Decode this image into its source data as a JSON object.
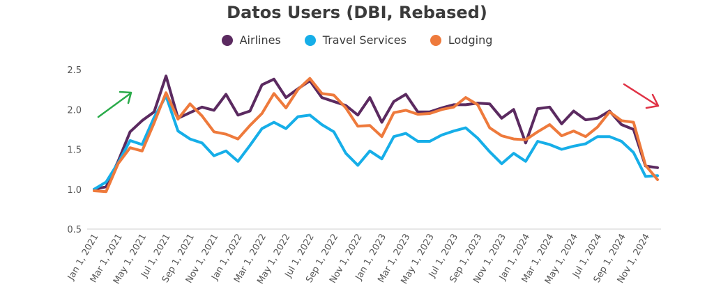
{
  "chart_data": {
    "type": "line",
    "title": "Datos Users (DBI, Rebased)",
    "xlabel": "",
    "ylabel": "",
    "ylim": [
      0.5,
      2.5
    ],
    "yticks": [
      "0.5",
      "1.0",
      "1.5",
      "2.0",
      "2.5"
    ],
    "grid": false,
    "legend_position": "top-center",
    "x": [
      "Jan 1, 2021",
      "Feb 1, 2021",
      "Mar 1, 2021",
      "Apr 1, 2021",
      "May 1, 2021",
      "Jun 1, 2021",
      "Jul 1, 2021",
      "Aug 1, 2021",
      "Sep 1, 2021",
      "Oct 1, 2021",
      "Nov 1, 2021",
      "Dec 1, 2021",
      "Jan 1, 2022",
      "Feb 1, 2022",
      "Mar 1, 2022",
      "Apr 1, 2022",
      "May 1, 2022",
      "Jun 1, 2022",
      "Jul 1, 2022",
      "Aug 1, 2022",
      "Sep 1, 2022",
      "Oct 1, 2022",
      "Nov 1, 2022",
      "Dec 1, 2022",
      "Jan 1, 2023",
      "Feb 1, 2023",
      "Mar 1, 2023",
      "Apr 1, 2023",
      "May 1, 2023",
      "Jun 1, 2023",
      "Jul 1, 2023",
      "Aug 1, 2023",
      "Sep 1, 2023",
      "Oct 1, 2023",
      "Nov 1, 2023",
      "Dec 1, 2023",
      "Jan 1, 2024",
      "Feb 1, 2024",
      "Mar 1, 2024",
      "Apr 1, 2024",
      "May 1, 2024",
      "Jun 1, 2024",
      "Jul 1, 2024",
      "Aug 1, 2024",
      "Sep 1, 2024",
      "Oct 1, 2024",
      "Nov 1, 2024",
      "Dec 1, 2024"
    ],
    "xtick_labels": [
      "Jan 1, 2021",
      "Mar 1, 2021",
      "May 1, 2021",
      "Jul 1, 2021",
      "Sep 1, 2021",
      "Nov 1, 2021",
      "Jan 1, 2022",
      "Mar 1, 2022",
      "May 1, 2022",
      "Jul 1, 2022",
      "Sep 1, 2022",
      "Nov 1, 2022",
      "Jan 1, 2023",
      "Mar 1, 2023",
      "May 1, 2023",
      "Jul 1, 2023",
      "Sep 1, 2023",
      "Nov 1, 2023",
      "Jan 1, 2024",
      "Mar 1, 2024",
      "May 1, 2024",
      "Jul 1, 2024",
      "Sep 1, 2024",
      "Nov 1, 2024"
    ],
    "series": [
      {
        "name": "Airlines",
        "color": "#5b2a60",
        "values": [
          1.0,
          1.03,
          1.35,
          1.72,
          1.86,
          1.97,
          2.42,
          1.89,
          1.96,
          2.03,
          1.99,
          2.19,
          1.93,
          1.98,
          2.31,
          2.38,
          2.15,
          2.26,
          2.36,
          2.15,
          2.1,
          2.05,
          1.93,
          2.15,
          1.84,
          2.1,
          2.19,
          1.97,
          1.97,
          2.02,
          2.06,
          2.06,
          2.08,
          2.07,
          1.89,
          2.0,
          1.58,
          2.01,
          2.03,
          1.82,
          1.98,
          1.87,
          1.89,
          1.98,
          1.81,
          1.75,
          1.29,
          1.27
        ]
      },
      {
        "name": "Travel Services",
        "color": "#16aee8",
        "values": [
          1.0,
          1.09,
          1.33,
          1.61,
          1.56,
          1.9,
          2.17,
          1.73,
          1.63,
          1.58,
          1.42,
          1.48,
          1.35,
          1.55,
          1.76,
          1.84,
          1.76,
          1.91,
          1.93,
          1.81,
          1.72,
          1.45,
          1.3,
          1.48,
          1.38,
          1.66,
          1.7,
          1.6,
          1.6,
          1.68,
          1.73,
          1.77,
          1.64,
          1.47,
          1.32,
          1.45,
          1.35,
          1.6,
          1.56,
          1.5,
          1.54,
          1.57,
          1.66,
          1.66,
          1.6,
          1.46,
          1.16,
          1.17
        ]
      },
      {
        "name": "Lodging",
        "color": "#ee7a3c",
        "values": [
          0.98,
          0.97,
          1.32,
          1.52,
          1.48,
          1.83,
          2.21,
          1.88,
          2.07,
          1.92,
          1.72,
          1.69,
          1.63,
          1.8,
          1.95,
          2.2,
          2.02,
          2.25,
          2.39,
          2.2,
          2.18,
          2.02,
          1.79,
          1.8,
          1.66,
          1.96,
          1.99,
          1.94,
          1.95,
          2.0,
          2.03,
          2.15,
          2.06,
          1.77,
          1.67,
          1.63,
          1.62,
          1.72,
          1.81,
          1.67,
          1.73,
          1.66,
          1.78,
          1.97,
          1.86,
          1.84,
          1.3,
          1.12
        ]
      }
    ],
    "annotations": [
      {
        "kind": "arrow",
        "color": "#2aab4a",
        "direction": "up-right"
      },
      {
        "kind": "arrow",
        "color": "#e03245",
        "direction": "down-right"
      }
    ]
  }
}
